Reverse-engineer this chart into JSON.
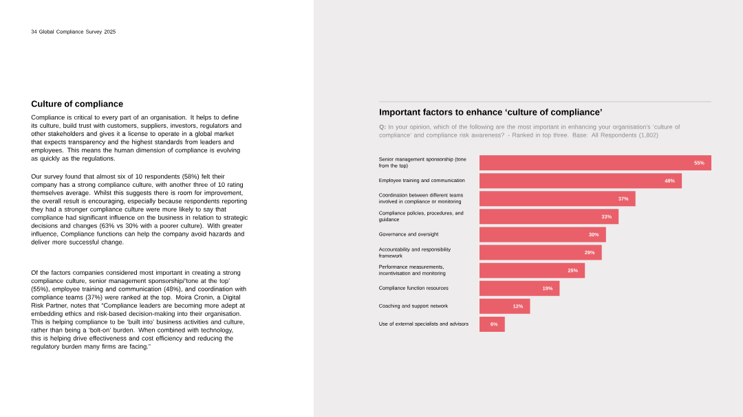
{
  "chart_data": {
    "type": "bar",
    "orientation": "horizontal",
    "title": "Important factors to enhance ‘culture of compliance’",
    "subtitle": "**Q:** In your opinion, which of the following are the most important in enhancing your organisation’s ‘culture of compliance’ and compliance risk awareness? - Ranked in top three. Base: All Respondents (1,802)",
    "categories": [
      "Senior management sponsorship (tone from the top)",
      "Employee training and communication",
      "Coordination between different teams involved in compliance or monitoring",
      "Compliance policies, procedures, and guidance",
      "Governance and oversight",
      "Accountability and responsibility framework",
      "Performance measurements, incentivisation and monitoring",
      "Compliance function resources",
      "Coaching and support network",
      "Use of external specialists and advisors"
    ],
    "values": [
      55,
      48,
      37,
      33,
      30,
      29,
      25,
      19,
      12,
      6
    ],
    "value_labels": [
      "55%",
      "48%",
      "37%",
      "33%",
      "30%",
      "29%",
      "25%",
      "19%",
      "12%",
      "6%"
    ],
    "color": "#e9606a",
    "annotations": [
      "34 Global Compliance Survey 2025",
      "Culture of compliance",
      "Compliance is critical to every part of an organisation. It helps to define its culture, build trust with customers, suppliers, investors, regulators and other stakeholders and gives it a license to operate in a global market that expects transparency and the highest standards from leaders and employees. This means the human dimension of compliance is evolving as quickly as the regulations.",
      "Our survey found that almost six of 10 respondents (58%) felt their company has a strong compliance culture, with another three of 10 rating themselves average. Whilst this suggests there is room for improvement, the overall result is encouraging, especially because respondents reporting they had a stronger compliance culture were more likely to say that compliance had significant influence on the business in relation to strategic decisions and changes (63% vs 30% with a poorer culture). With greater influence, Compliance functions can help the company avoid hazards and deliver more successful change.",
      "Of the factors companies considered most important in creating a strong compliance culture, senior management sponsorship/‘tone at the top’ (55%), employee training and communication (48%), and coordination with compliance teams (37%) were ranked at the top. Moira Cronin, a Digital Risk Partner, notes that “Compliance leaders are becoming more adept at embedding ethics and risk-based decision-making into their organisation. This is helping compliance to be ‘built into’ business activities and culture, rather than being a ‘bolt-on’ burden. When combined with technology, this is helping drive effectiveness and cost efficiency and reducing the regulatory burden many firms are facing.”"
    ]
  }
}
